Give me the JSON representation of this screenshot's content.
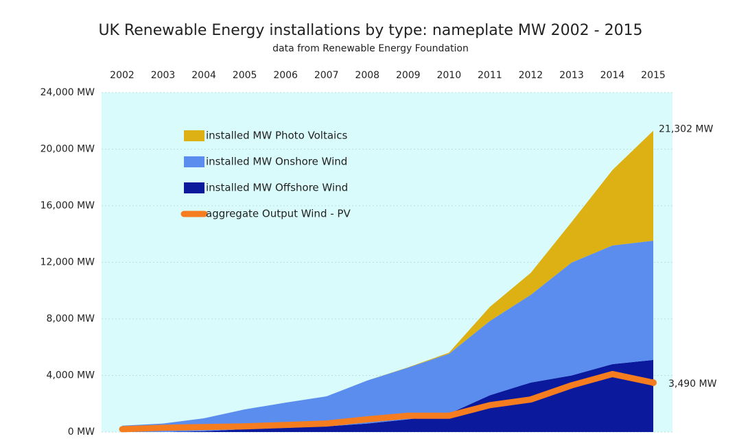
{
  "chart_data": {
    "type": "stacked_area_line",
    "title": "UK Renewable Energy installations by type: nameplate MW  2002 - 2015",
    "subtitle": "data from Renewable Energy Foundation",
    "categories": [
      "2002",
      "2003",
      "2004",
      "2005",
      "2006",
      "2007",
      "2008",
      "2009",
      "2010",
      "2011",
      "2012",
      "2013",
      "2014",
      "2015"
    ],
    "ylim": [
      0,
      24000
    ],
    "yticks": [
      {
        "value": 0,
        "label": "0 MW"
      },
      {
        "value": 4000,
        "label": "4,000 MW"
      },
      {
        "value": 8000,
        "label": "8,000 MW"
      },
      {
        "value": 12000,
        "label": "12,000 MW"
      },
      {
        "value": 16000,
        "label": "16,000 MW"
      },
      {
        "value": 20000,
        "label": "20,000 MW"
      },
      {
        "value": 24000,
        "label": "24,000 MW"
      }
    ],
    "grid": true,
    "series": [
      {
        "name": "installed MW Offshore Wind",
        "color": "#0b1a9c",
        "kind": "area",
        "values": [
          0,
          0,
          60,
          200,
          300,
          400,
          600,
          900,
          1300,
          2600,
          3500,
          4000,
          4800,
          5100
        ]
      },
      {
        "name": "installed MW Onshore Wind",
        "color": "#5b8def",
        "kind": "area",
        "values": [
          450,
          600,
          910,
          1400,
          1780,
          2120,
          3040,
          3660,
          4230,
          5250,
          6200,
          7980,
          8390,
          8430
        ]
      },
      {
        "name": "installed MW Photo Voltaics",
        "color": "#ddb013",
        "kind": "area",
        "values": [
          0,
          0,
          0,
          0,
          0,
          0,
          0,
          20,
          80,
          1000,
          1550,
          2860,
          5330,
          7772
        ]
      },
      {
        "name": "aggregate Output Wind - PV",
        "color": "#f57d1f",
        "kind": "line",
        "values": [
          200,
          300,
          350,
          400,
          500,
          600,
          900,
          1150,
          1150,
          1900,
          2300,
          3300,
          4100,
          3490
        ],
        "value_labels": [
          null,
          null,
          null,
          null,
          null,
          null,
          null,
          null,
          null,
          null,
          null,
          null,
          null,
          "3,490 MW"
        ]
      }
    ],
    "annotations": [
      {
        "text": "21,302 MW"
      }
    ]
  }
}
